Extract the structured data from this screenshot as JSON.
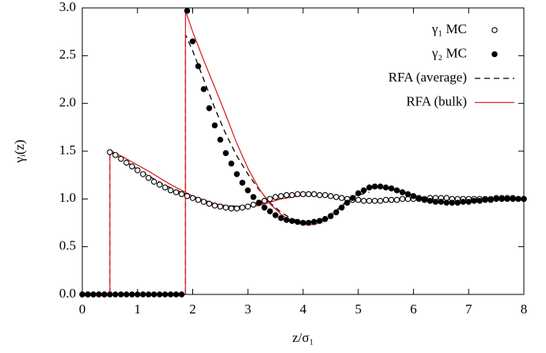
{
  "chart_data": {
    "type": "line",
    "x_label": "z/σ₁",
    "y_label": "γᵢ(z)",
    "xlim": [
      0,
      8
    ],
    "ylim": [
      0,
      3
    ],
    "xticks": [
      0,
      1,
      2,
      3,
      4,
      5,
      6,
      7,
      8
    ],
    "yticks": [
      {
        "value": 0,
        "label": "0.0"
      },
      0.5,
      {
        "value": 1,
        "label": "1.0"
      },
      1.5,
      {
        "value": 2,
        "label": "2.0"
      },
      2.5,
      {
        "value": 3,
        "label": "3.0"
      }
    ],
    "grid": false,
    "legend": "upper right",
    "series": [
      {
        "name": "γ₁ MC",
        "color": "#000000",
        "mode": "markers",
        "marker": "open",
        "x": [
          0,
          0.1,
          0.2,
          0.3,
          0.4,
          0.5,
          0.6,
          0.7,
          0.8,
          0.9,
          1.0,
          1.1,
          1.2,
          1.3,
          1.4,
          1.5,
          1.6,
          1.7,
          1.8,
          1.9,
          2.0,
          2.1,
          2.2,
          2.3,
          2.4,
          2.5,
          2.6,
          2.7,
          2.8,
          2.9,
          3.0,
          3.1,
          3.2,
          3.3,
          3.4,
          3.5,
          3.6,
          3.7,
          3.8,
          3.9,
          4.0,
          4.1,
          4.2,
          4.3,
          4.4,
          4.5,
          4.6,
          4.7,
          4.8,
          4.9,
          5.0,
          5.1,
          5.2,
          5.3,
          5.4,
          5.5,
          5.6,
          5.7,
          5.8,
          5.9,
          6.0,
          6.1,
          6.2,
          6.3,
          6.4,
          6.5,
          6.6,
          6.7,
          6.8,
          6.9,
          7.0,
          7.1,
          7.2,
          7.3,
          7.4,
          7.5,
          7.6,
          7.7,
          7.8,
          7.9,
          8.0
        ],
        "values": [
          0,
          0,
          0,
          0,
          0,
          1.49,
          1.46,
          1.42,
          1.38,
          1.34,
          1.3,
          1.26,
          1.22,
          1.18,
          1.15,
          1.12,
          1.09,
          1.07,
          1.05,
          1.03,
          1.01,
          0.99,
          0.97,
          0.95,
          0.93,
          0.92,
          0.91,
          0.9,
          0.9,
          0.91,
          0.92,
          0.94,
          0.96,
          0.98,
          1.0,
          1.02,
          1.03,
          1.04,
          1.04,
          1.05,
          1.05,
          1.05,
          1.05,
          1.04,
          1.04,
          1.03,
          1.02,
          1.01,
          1.0,
          0.99,
          0.99,
          0.98,
          0.98,
          0.98,
          0.98,
          0.99,
          0.99,
          0.99,
          1.0,
          1.0,
          1.0,
          1.0,
          1.0,
          1.01,
          1.01,
          1.01,
          1.01,
          1.0,
          1.0,
          1.0,
          1.0,
          1.0,
          1.0,
          1.0,
          1.0,
          1.01,
          1.01,
          1.01,
          1.01,
          1.0,
          1.0
        ]
      },
      {
        "name": "γ₂ MC",
        "color": "#000000",
        "mode": "markers",
        "marker": "filled",
        "x": [
          0,
          0.1,
          0.2,
          0.3,
          0.4,
          0.5,
          0.6,
          0.7,
          0.8,
          0.9,
          1.0,
          1.1,
          1.2,
          1.3,
          1.4,
          1.5,
          1.6,
          1.7,
          1.8,
          1.9,
          2.0,
          2.1,
          2.2,
          2.3,
          2.4,
          2.5,
          2.6,
          2.7,
          2.8,
          2.9,
          3.0,
          3.1,
          3.2,
          3.3,
          3.4,
          3.5,
          3.6,
          3.7,
          3.8,
          3.9,
          4.0,
          4.1,
          4.2,
          4.3,
          4.4,
          4.5,
          4.6,
          4.7,
          4.8,
          4.9,
          5.0,
          5.1,
          5.2,
          5.3,
          5.4,
          5.5,
          5.6,
          5.7,
          5.8,
          5.9,
          6.0,
          6.1,
          6.2,
          6.3,
          6.4,
          6.5,
          6.6,
          6.7,
          6.8,
          6.9,
          7.0,
          7.1,
          7.2,
          7.3,
          7.4,
          7.5,
          7.6,
          7.7,
          7.8,
          7.9,
          8.0
        ],
        "values": [
          0,
          0,
          0,
          0,
          0,
          0,
          0,
          0,
          0,
          0,
          0,
          0,
          0,
          0,
          0,
          0,
          0,
          0,
          0,
          2.97,
          2.65,
          2.39,
          2.15,
          1.95,
          1.77,
          1.62,
          1.48,
          1.37,
          1.26,
          1.17,
          1.09,
          1.02,
          0.96,
          0.91,
          0.87,
          0.83,
          0.8,
          0.78,
          0.77,
          0.76,
          0.75,
          0.75,
          0.76,
          0.77,
          0.79,
          0.82,
          0.86,
          0.91,
          0.96,
          1.01,
          1.06,
          1.09,
          1.12,
          1.13,
          1.13,
          1.12,
          1.11,
          1.09,
          1.07,
          1.05,
          1.03,
          1.01,
          0.99,
          0.98,
          0.97,
          0.97,
          0.96,
          0.96,
          0.96,
          0.97,
          0.97,
          0.98,
          0.98,
          0.99,
          0.99,
          1.0,
          1.0,
          1.0,
          1.0,
          1.0,
          1.0
        ]
      },
      {
        "name": "RFA (average)",
        "color": "#000000",
        "mode": "lines",
        "dash": true,
        "x": [
          0,
          0.5,
          0.5,
          1.0,
          1.5,
          2.0,
          2.5,
          3.0,
          3.5,
          4.0,
          4.5,
          5.0,
          5.5,
          6.0,
          7.0,
          8.0,
          null,
          0,
          1.87,
          1.87,
          2.0,
          2.2,
          2.4,
          2.6,
          2.8,
          3.0,
          3.2,
          3.4,
          3.6,
          3.8,
          4.0,
          4.2,
          4.4,
          4.6,
          4.8,
          5.0,
          5.2
        ],
        "values": [
          0,
          0,
          1.5,
          1.31,
          1.14,
          1.02,
          0.93,
          0.92,
          0.99,
          1.04,
          1.03,
          0.99,
          0.98,
          1.0,
          1.0,
          1.0,
          null,
          0,
          0,
          2.72,
          2.55,
          2.25,
          1.95,
          1.68,
          1.45,
          1.26,
          1.1,
          0.96,
          0.86,
          0.79,
          0.76,
          0.76,
          0.8,
          0.88,
          0.98,
          1.04,
          1.07
        ]
      },
      {
        "name": "RFA (bulk)",
        "color": "#dd2222",
        "mode": "lines",
        "dash": false,
        "x": [
          0,
          0.5,
          0.5,
          0.8,
          1.2,
          1.6,
          2.0,
          2.4,
          2.8,
          3.2,
          3.6,
          4.0,
          4.4,
          4.8,
          5.2,
          5.6,
          6.0,
          6.5,
          7.0,
          7.5,
          8.0,
          null,
          0,
          1.87,
          1.87,
          2.0,
          2.2,
          2.4,
          2.6,
          2.8,
          3.0,
          3.2,
          3.4,
          3.6,
          3.8,
          4.0,
          4.2,
          4.4,
          4.6,
          4.8,
          5.0,
          5.2,
          5.4,
          5.6,
          5.8,
          6.0,
          6.4,
          6.8,
          7.2,
          7.6,
          8.0
        ],
        "values": [
          0,
          0,
          1.51,
          1.42,
          1.29,
          1.15,
          1.03,
          0.95,
          0.91,
          0.93,
          1.0,
          1.04,
          1.03,
          1.0,
          0.98,
          0.98,
          1.0,
          1.0,
          1.0,
          1.0,
          1.0,
          null,
          0,
          0,
          2.97,
          2.75,
          2.45,
          2.17,
          1.88,
          1.58,
          1.32,
          1.11,
          0.95,
          0.84,
          0.76,
          0.73,
          0.73,
          0.77,
          0.86,
          0.97,
          1.06,
          1.11,
          1.12,
          1.11,
          1.08,
          1.04,
          0.98,
          0.96,
          0.98,
          1.0,
          1.0
        ]
      }
    ]
  }
}
